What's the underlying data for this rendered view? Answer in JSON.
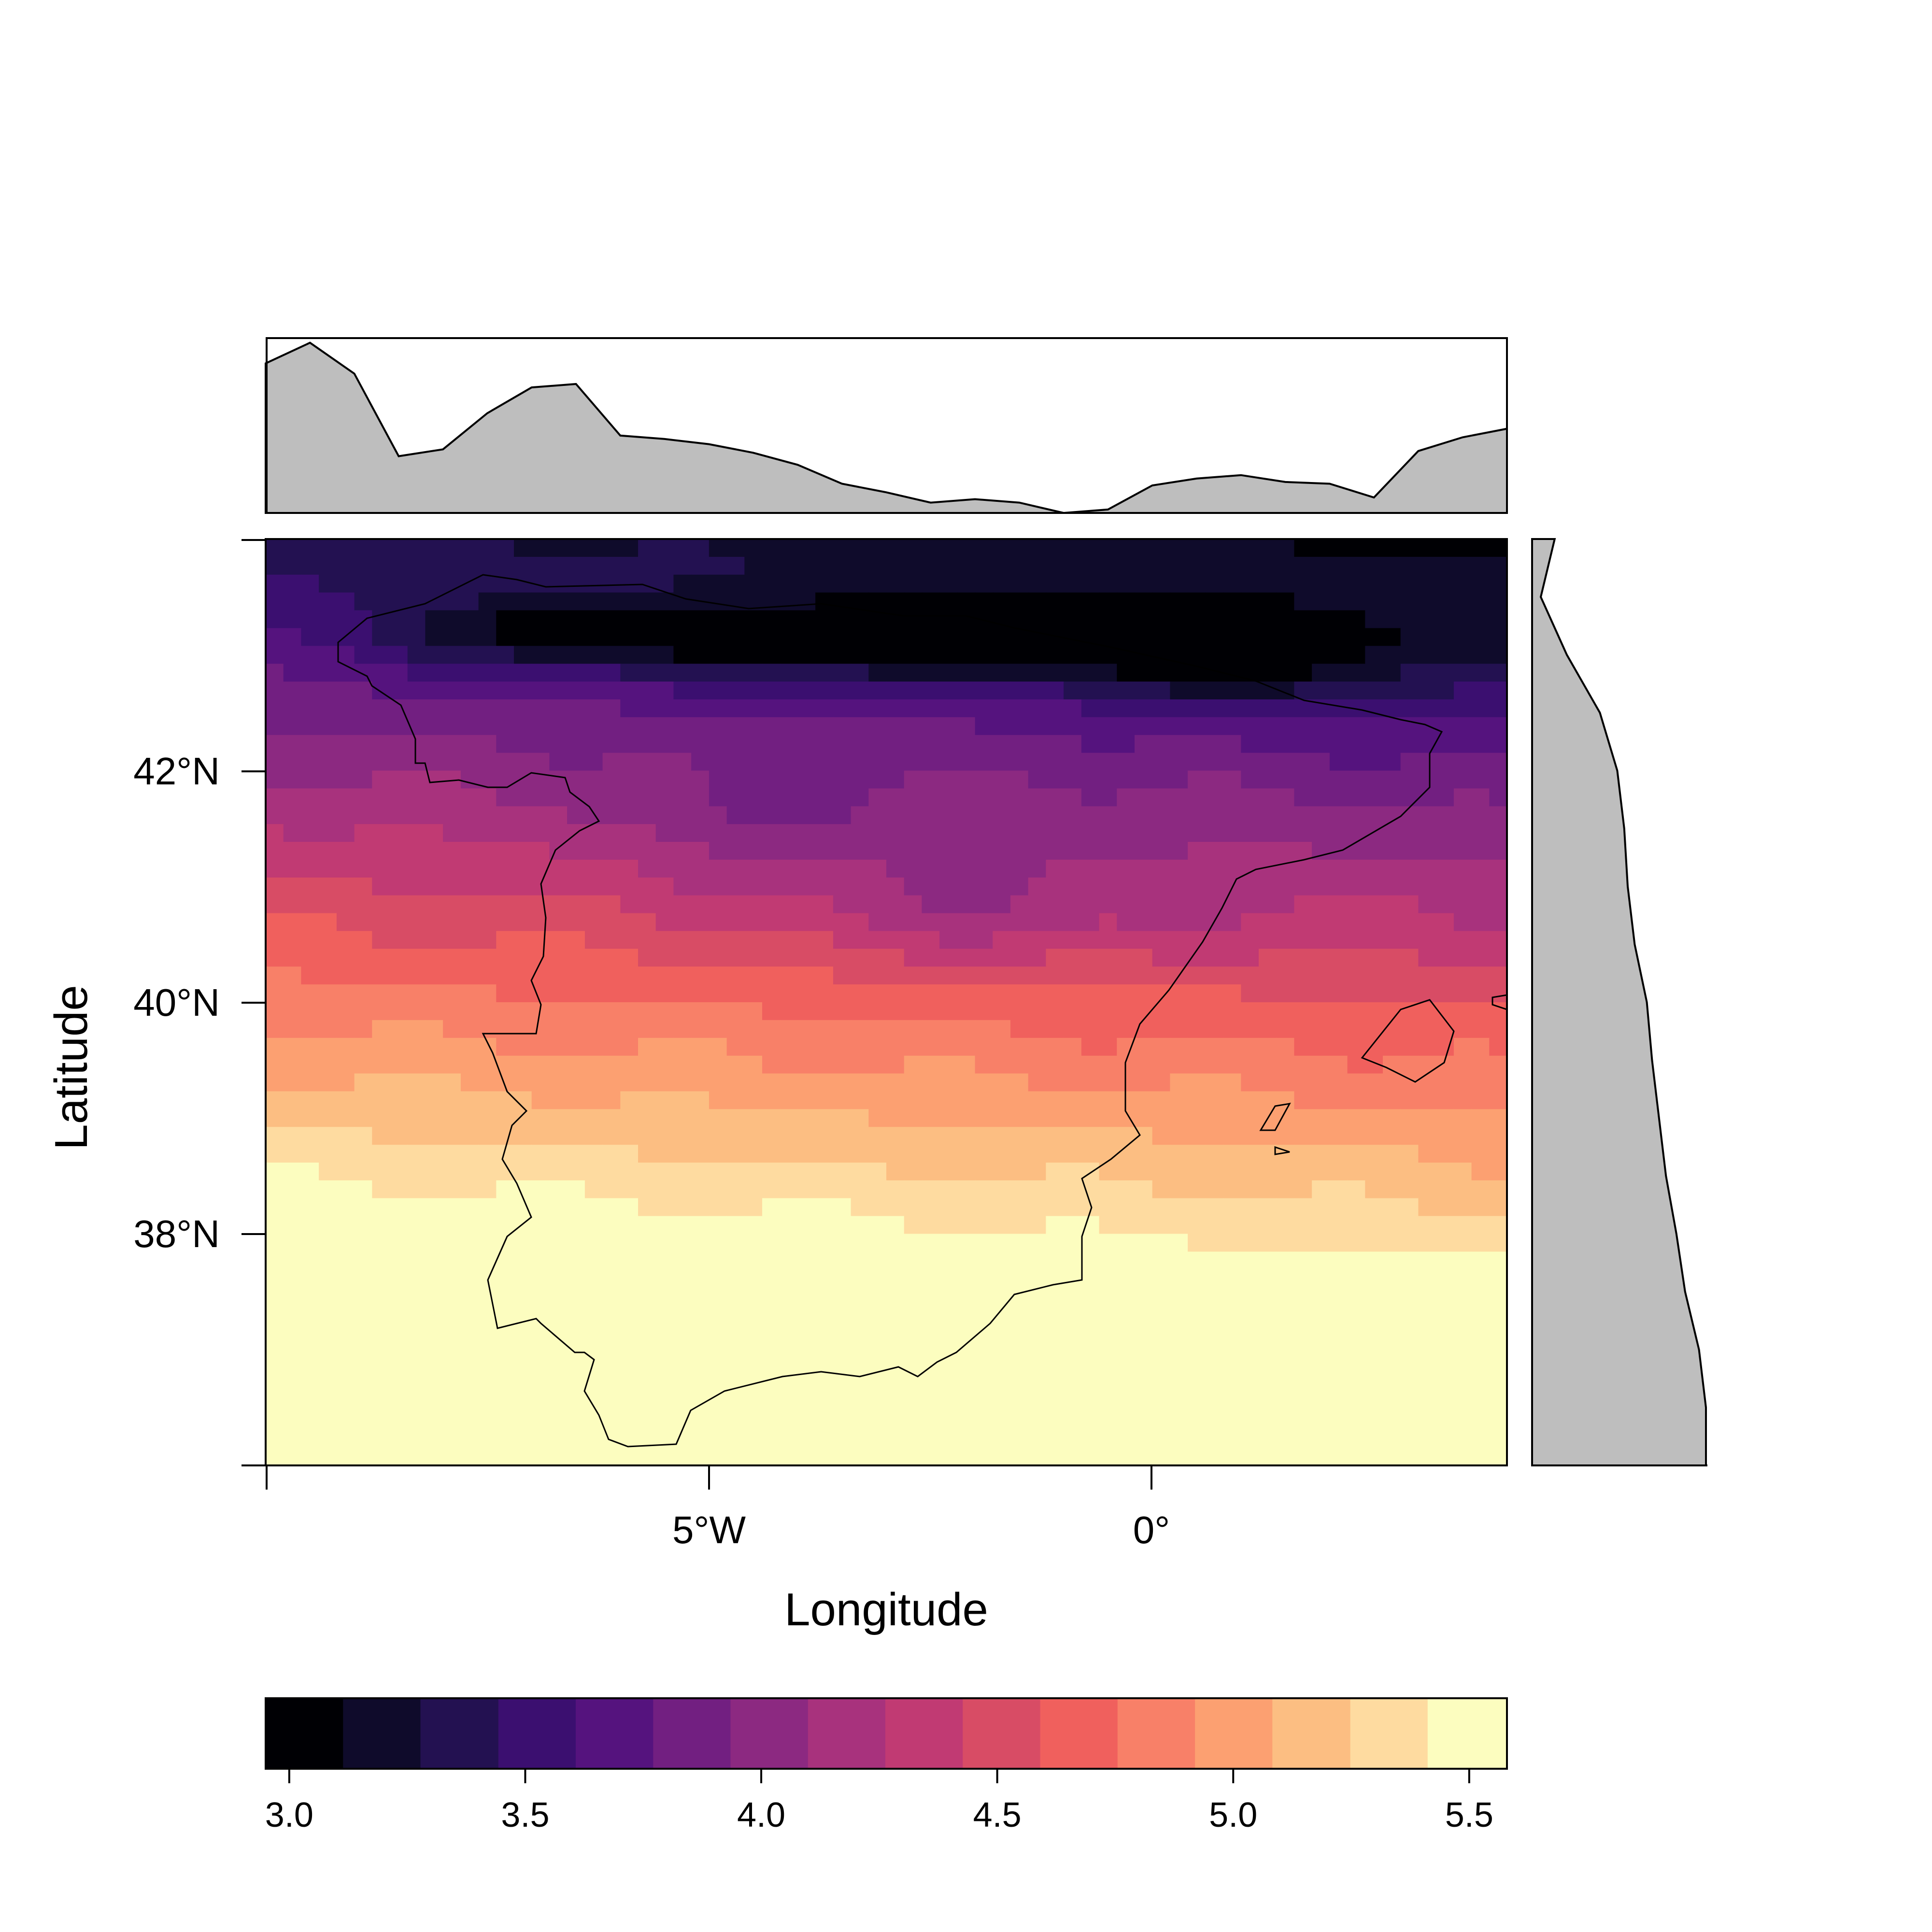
{
  "chart_data": {
    "type": "heatmap",
    "title": "",
    "xlabel": "Longitude",
    "ylabel": "Latitude",
    "xlim": [
      -10,
      4
    ],
    "ylim": [
      36,
      44
    ],
    "x_ticks": [
      {
        "value": -5,
        "label": "5°W"
      },
      {
        "value": 0,
        "label": "0°"
      }
    ],
    "y_ticks": [
      {
        "value": 38,
        "label": "38°N"
      },
      {
        "value": 40,
        "label": "40°N"
      },
      {
        "value": 42,
        "label": "42°N"
      }
    ],
    "colorbar": {
      "min": 2.95,
      "max": 5.58,
      "levels": [
        2.95,
        3.114,
        3.278,
        3.443,
        3.607,
        3.771,
        3.935,
        4.099,
        4.263,
        4.427,
        4.591,
        4.755,
        4.919,
        5.083,
        5.248,
        5.412,
        5.58
      ],
      "colors": [
        "#000004",
        "#0f0b2b",
        "#231151",
        "#3b0f70",
        "#55137e",
        "#721f81",
        "#8c2981",
        "#a8327d",
        "#c13a73",
        "#d84c65",
        "#f0605d",
        "#f88068",
        "#fca071",
        "#fcbe82",
        "#fedba0",
        "#fcfdbf"
      ],
      "tick_values": [
        3.0,
        3.5,
        4.0,
        4.5,
        5.0,
        5.5
      ],
      "tick_labels": [
        "3.0",
        "3.5",
        "4.0",
        "4.5",
        "5.0",
        "5.5"
      ]
    },
    "field_summary": "Values lowest (~3.0-3.6) along the northern mountains near 43°N, rising southward to ~5.3 near 36-37°N in the southwest.",
    "marginal_top": {
      "type": "area",
      "lon": [
        -10,
        -9.5,
        -9,
        -8.5,
        -8,
        -7.5,
        -7,
        -6.5,
        -6,
        -5.5,
        -5,
        -4.5,
        -4,
        -3.5,
        -3,
        -2.5,
        -2,
        -1.5,
        -1,
        -0.5,
        0,
        0.5,
        1,
        1.5,
        2,
        2.5,
        3,
        3.5,
        4
      ],
      "value": [
        0.87,
        0.99,
        0.81,
        0.33,
        0.37,
        0.58,
        0.73,
        0.75,
        0.45,
        0.43,
        0.4,
        0.35,
        0.28,
        0.17,
        0.12,
        0.06,
        0.08,
        0.06,
        0.0,
        0.02,
        0.16,
        0.2,
        0.22,
        0.18,
        0.17,
        0.09,
        0.36,
        0.44,
        0.49
      ]
    },
    "marginal_right": {
      "type": "area",
      "lat": [
        44,
        43.5,
        43,
        42.5,
        42,
        41.5,
        41,
        40.5,
        40,
        39.5,
        39,
        38.5,
        38,
        37.5,
        37,
        36.5,
        36
      ],
      "value": [
        0.13,
        0.05,
        0.2,
        0.39,
        0.49,
        0.53,
        0.55,
        0.59,
        0.66,
        0.69,
        0.73,
        0.77,
        0.83,
        0.88,
        0.96,
        1.0,
        1.0
      ]
    }
  }
}
